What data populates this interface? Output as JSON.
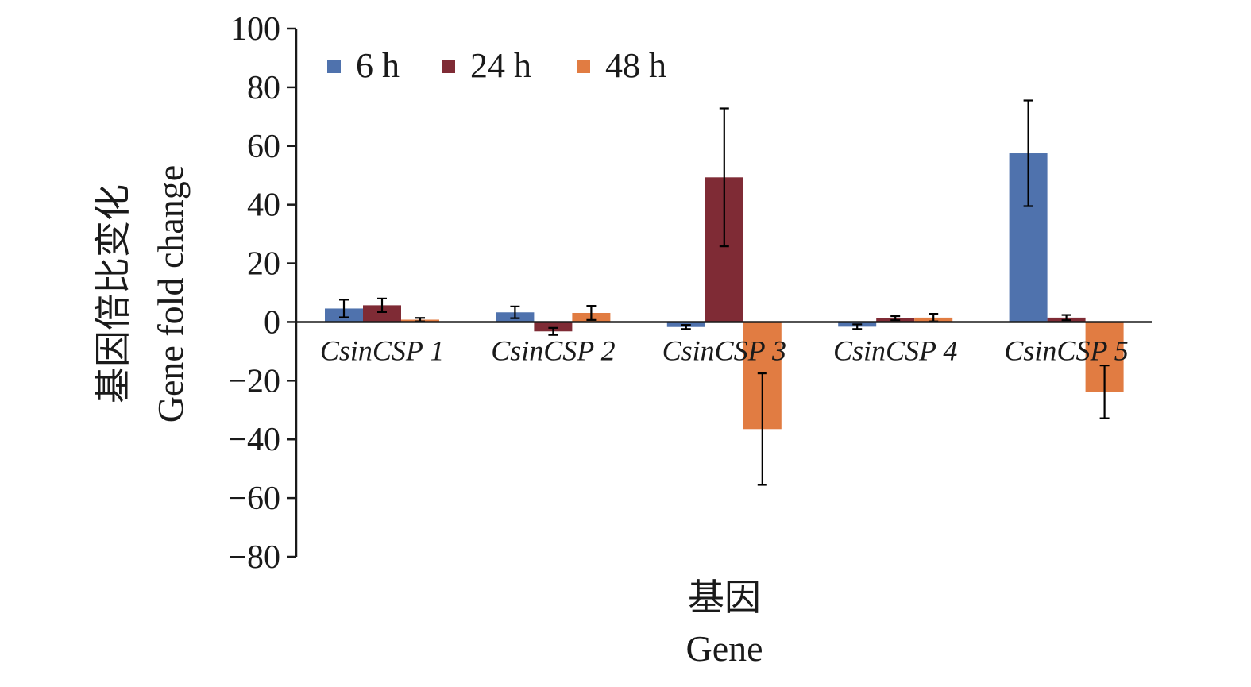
{
  "chart_data": {
    "type": "bar",
    "categories": [
      "CsinCSP 1",
      "CsinCSP 2",
      "CsinCSP 3",
      "CsinCSP 4",
      "CsinCSP 5"
    ],
    "series": [
      {
        "name": "6 h",
        "color": "#4f72ad",
        "values": [
          4.6,
          3.3,
          -1.7,
          -1.6,
          57.5
        ],
        "errors": [
          3.0,
          2.0,
          0.7,
          0.8,
          18.0
        ]
      },
      {
        "name": "24 h",
        "color": "#7f2b35",
        "values": [
          5.7,
          -3.2,
          49.3,
          1.3,
          1.5
        ],
        "errors": [
          2.3,
          1.2,
          23.5,
          0.7,
          0.9
        ]
      },
      {
        "name": "48 h",
        "color": "#e17c42",
        "values": [
          0.8,
          3.1,
          -36.5,
          1.5,
          -23.8
        ],
        "errors": [
          0.6,
          2.4,
          19.0,
          1.3,
          9.0
        ]
      }
    ],
    "ylim": [
      -80,
      100
    ],
    "yticks": [
      100,
      80,
      60,
      40,
      20,
      0,
      -20,
      -40,
      -60,
      -80
    ],
    "ytick_labels": [
      "100",
      "80",
      "60",
      "40",
      "20",
      "0",
      "−20",
      "−40",
      "−60",
      "−80"
    ],
    "ylabel_cn": "基因倍比变化",
    "ylabel_en": "Gene fold change",
    "xlabel_cn": "基因",
    "xlabel_en": "Gene",
    "legend_position": "top-left",
    "grid": false
  }
}
